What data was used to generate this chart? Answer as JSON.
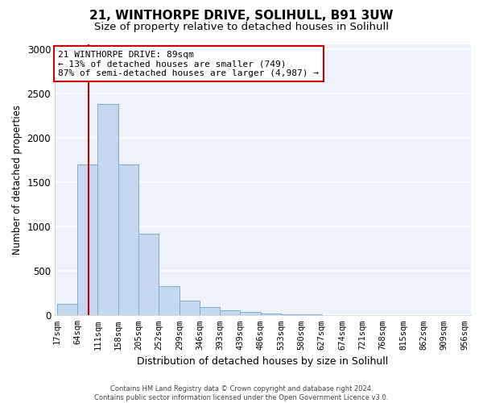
{
  "title1": "21, WINTHORPE DRIVE, SOLIHULL, B91 3UW",
  "title2": "Size of property relative to detached houses in Solihull",
  "xlabel": "Distribution of detached houses by size in Solihull",
  "ylabel": "Number of detached properties",
  "bar_edges": [
    17,
    64,
    111,
    158,
    205,
    252,
    299,
    346,
    393,
    439,
    486,
    533,
    580,
    627,
    674,
    721,
    768,
    815,
    862,
    909,
    956
  ],
  "bar_heights": [
    130,
    1700,
    2380,
    1700,
    920,
    330,
    165,
    90,
    55,
    40,
    18,
    12,
    8,
    5,
    4,
    3,
    2,
    2,
    2,
    2
  ],
  "bar_color": "#c5d8f0",
  "bar_edgecolor": "#7aadd4",
  "property_size": 89,
  "vline_color": "#cc0000",
  "annotation_text": "21 WINTHORPE DRIVE: 89sqm\n← 13% of detached houses are smaller (749)\n87% of semi-detached houses are larger (4,987) →",
  "annotation_box_facecolor": "#ffffff",
  "annotation_box_edgecolor": "#cc0000",
  "ylim": [
    0,
    3050
  ],
  "footnote": "Contains HM Land Registry data © Crown copyright and database right 2024.\nContains public sector information licensed under the Open Government Licence v3.0.",
  "bg_color": "#eef2fa",
  "grid_color": "#ffffff",
  "title1_fontsize": 11,
  "title2_fontsize": 9.5,
  "xlabel_fontsize": 9,
  "ylabel_fontsize": 8.5,
  "tick_fontsize": 7.5,
  "footnote_fontsize": 6,
  "annot_fontsize": 8
}
